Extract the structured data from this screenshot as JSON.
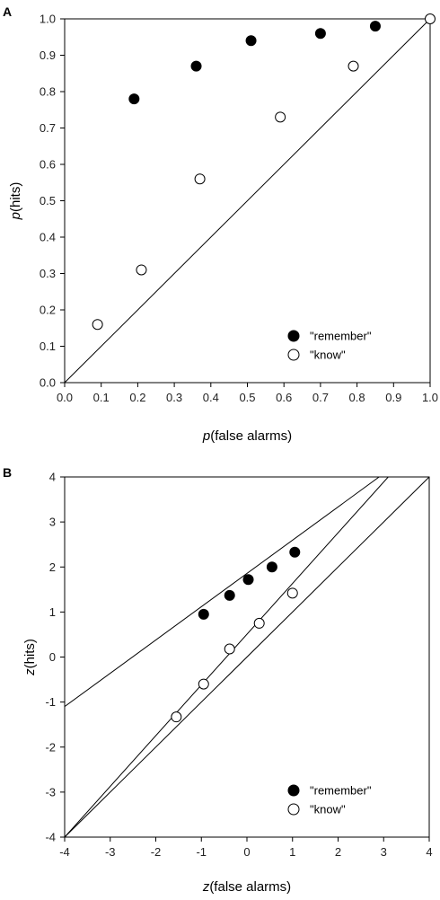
{
  "chart_data": [
    {
      "panel_label": "A",
      "type": "scatter",
      "xlabel": {
        "italic": "p",
        "rest": "(false alarms)"
      },
      "ylabel": {
        "italic": "p",
        "rest": "(hits)"
      },
      "xlim": [
        0,
        1
      ],
      "ylim": [
        0,
        1
      ],
      "xticks": [
        "0.0",
        "0.1",
        "0.2",
        "0.3",
        "0.4",
        "0.5",
        "0.6",
        "0.7",
        "0.8",
        "0.9",
        "1.0"
      ],
      "yticks": [
        "0.0",
        "0.1",
        "0.2",
        "0.3",
        "0.4",
        "0.5",
        "0.6",
        "0.7",
        "0.8",
        "0.9",
        "1.0"
      ],
      "grid": false,
      "legend_position": "bottom-right",
      "series": [
        {
          "name": "\"remember\"",
          "marker": "filled-circle",
          "x": [
            0.19,
            0.36,
            0.51,
            0.7,
            0.85
          ],
          "y": [
            0.78,
            0.87,
            0.94,
            0.96,
            0.98
          ]
        },
        {
          "name": "\"know\"",
          "marker": "open-circle",
          "x": [
            0.09,
            0.21,
            0.37,
            0.59,
            0.79,
            1.0
          ],
          "y": [
            0.16,
            0.31,
            0.56,
            0.73,
            0.87,
            1.0
          ]
        }
      ],
      "lines": [
        {
          "role": "chance-diagonal",
          "x": [
            0,
            1
          ],
          "y": [
            0,
            1
          ]
        }
      ]
    },
    {
      "panel_label": "B",
      "type": "scatter",
      "xlabel": {
        "italic": "z",
        "rest": "(false alarms)"
      },
      "ylabel": {
        "italic": "z",
        "rest": "(hits)"
      },
      "xlim": [
        -4,
        4
      ],
      "ylim": [
        -4,
        4
      ],
      "xticks": [
        "-4",
        "-3",
        "-2",
        "-1",
        "0",
        "1",
        "2",
        "3",
        "4"
      ],
      "yticks": [
        "4",
        "3",
        "2",
        "1",
        "0",
        "-1",
        "-2",
        "-3",
        "-4"
      ],
      "grid": false,
      "legend_position": "bottom-right",
      "series": [
        {
          "name": "\"remember\"",
          "marker": "filled-circle",
          "x": [
            -0.95,
            -0.38,
            0.03,
            0.55,
            1.05
          ],
          "y": [
            0.95,
            1.37,
            1.72,
            2.0,
            2.33
          ]
        },
        {
          "name": "\"know\"",
          "marker": "open-circle",
          "x": [
            -1.55,
            -0.95,
            -0.38,
            0.27,
            1.0
          ],
          "y": [
            -1.33,
            -0.6,
            0.18,
            0.75,
            1.42
          ]
        }
      ],
      "lines": [
        {
          "role": "remember-fit",
          "x": [
            -4,
            2.9
          ],
          "y": [
            -1.1,
            4.0
          ]
        },
        {
          "role": "know-fit",
          "x": [
            -4,
            3.1
          ],
          "y": [
            -4.0,
            4.0
          ]
        },
        {
          "role": "chance-diagonal",
          "x": [
            -4,
            4
          ],
          "y": [
            -4,
            4
          ]
        }
      ]
    }
  ]
}
